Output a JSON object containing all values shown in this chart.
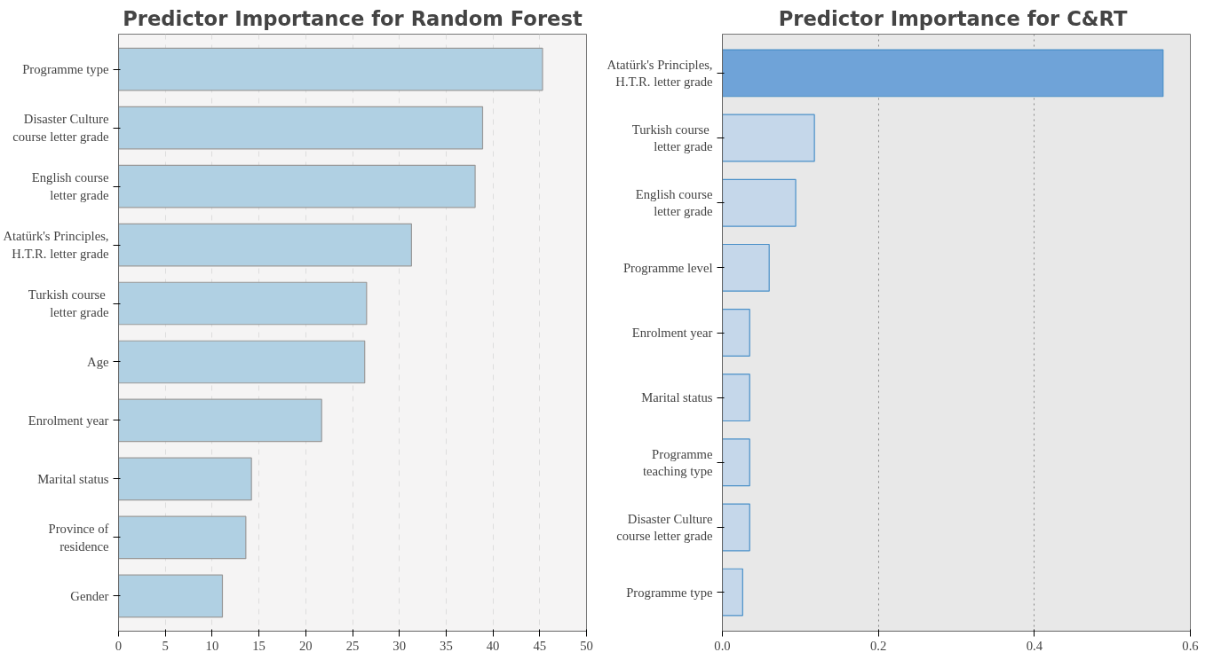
{
  "chart_data": [
    {
      "type": "bar",
      "orientation": "horizontal",
      "title": "Predictor Importance for Random Forest",
      "categories": [
        "Programme type",
        "Disaster Culture\ncourse letter grade",
        "English course\nletter grade",
        "Atatürk's Principles,\nH.T.R. letter grade",
        "Turkish  course\nletter grade",
        "Age",
        "Enrolment year",
        "Marital status",
        "Province of\nresidence",
        "Gender"
      ],
      "values": [
        45.3,
        38.9,
        38.1,
        31.3,
        26.5,
        26.3,
        21.7,
        14.2,
        13.6,
        11.1
      ],
      "color": "#b0d0e3",
      "xlim": [
        0,
        50
      ],
      "xticks": [
        0,
        5,
        10,
        15,
        20,
        25,
        30,
        35,
        40,
        45,
        50
      ],
      "grid": "x"
    },
    {
      "type": "bar",
      "orientation": "horizontal",
      "title": "Predictor Importance for  C&RT",
      "categories": [
        "Atatürk's Principles,\nH.T.R. letter grade",
        "Turkish  course\nletter grade",
        "English course\nletter grade",
        "Programme level",
        "Enrolment year",
        "Marital status",
        "Programme\nteaching type",
        "Disaster Culture\ncourse letter grade",
        "Programme type"
      ],
      "values": [
        0.565,
        0.118,
        0.094,
        0.06,
        0.035,
        0.035,
        0.035,
        0.035,
        0.026
      ],
      "colors": [
        "#6fa3d8",
        "#c5d7ea",
        "#c5d7ea",
        "#c5d7ea",
        "#c5d7ea",
        "#c5d7ea",
        "#c5d7ea",
        "#c5d7ea",
        "#c5d7ea"
      ],
      "xlim": [
        0,
        0.6
      ],
      "xticks": [
        {
          "value": 0,
          "label": "0.0"
        },
        0.2,
        0.4,
        0.6
      ],
      "grid": "x"
    }
  ]
}
